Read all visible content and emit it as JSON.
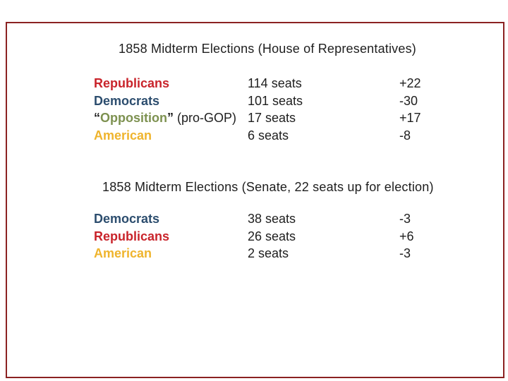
{
  "slide": {
    "background": "#ffffff",
    "frame_color": "#8b2222",
    "text_color": "#1e1e1e"
  },
  "colors": {
    "republicans": "#c9242b",
    "democrats": "#2c4d6e",
    "opposition": "#7d9150",
    "american": "#efb42d"
  },
  "house": {
    "title": "1858 Midterm Elections (House of Representatives)",
    "rows": [
      {
        "party": "Republicans",
        "color": "republicans",
        "prefix": "",
        "suffix_quote": "",
        "suffix": "",
        "seats": "114 seats",
        "change": "+22"
      },
      {
        "party": "Democrats",
        "color": "democrats",
        "prefix": "",
        "suffix_quote": "",
        "suffix": "",
        "seats": "101 seats",
        "change": "-30"
      },
      {
        "party": "Opposition",
        "color": "opposition",
        "prefix": "“",
        "suffix_quote": "”",
        "suffix": " (pro-GOP)",
        "seats": "17 seats",
        "change": "+17"
      },
      {
        "party": "American",
        "color": "american",
        "prefix": "",
        "suffix_quote": "",
        "suffix": "",
        "seats": "6 seats",
        "change": "-8"
      }
    ]
  },
  "senate": {
    "title": "1858 Midterm Elections (Senate, 22 seats up for election)",
    "rows": [
      {
        "party": "Democrats",
        "color": "democrats",
        "prefix": "",
        "suffix_quote": "",
        "suffix": "",
        "seats": "38 seats",
        "change": "-3"
      },
      {
        "party": "Republicans",
        "color": "republicans",
        "prefix": "",
        "suffix_quote": "",
        "suffix": "",
        "seats": "26 seats",
        "change": "+6"
      },
      {
        "party": "American",
        "color": "american",
        "prefix": "",
        "suffix_quote": "",
        "suffix": "",
        "seats": "2 seats",
        "change": "-3"
      }
    ]
  }
}
